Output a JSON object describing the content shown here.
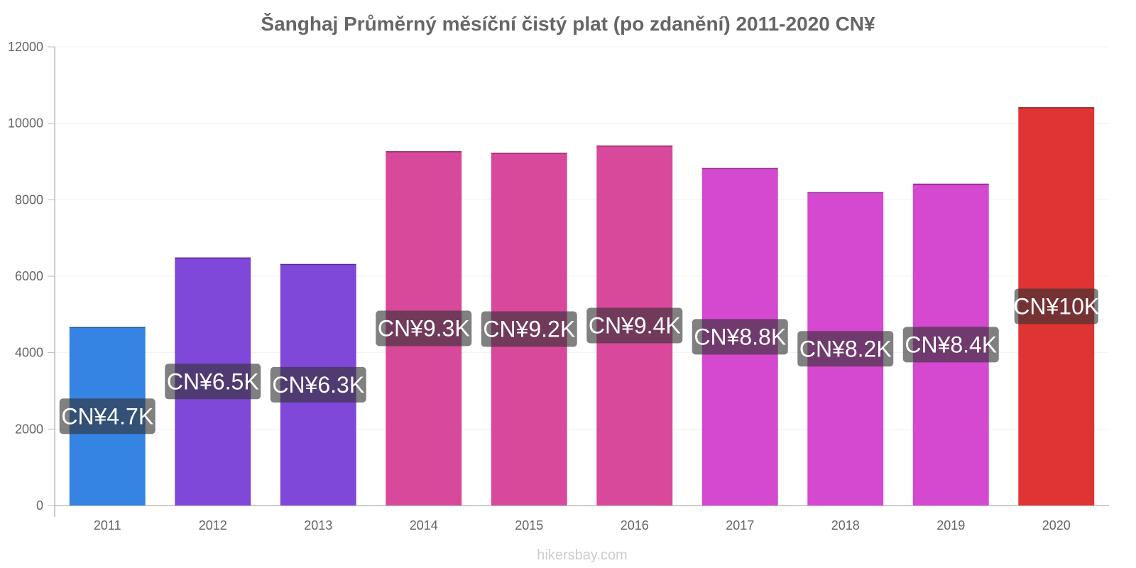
{
  "chart_data": {
    "type": "bar",
    "title": "Šanghaj Průměrný měsíční čistý plat (po zdanění) 2011-2020 CN¥",
    "categories": [
      "2011",
      "2012",
      "2013",
      "2014",
      "2015",
      "2016",
      "2017",
      "2018",
      "2019",
      "2020"
    ],
    "values": [
      4670,
      6490,
      6320,
      9270,
      9230,
      9420,
      8830,
      8200,
      8420,
      10420
    ],
    "data_labels": [
      "CN¥4.7K",
      "CN¥6.5K",
      "CN¥6.3K",
      "CN¥9.3K",
      "CN¥9.2K",
      "CN¥9.4K",
      "CN¥8.8K",
      "CN¥8.2K",
      "CN¥8.4K",
      "CN¥10K"
    ],
    "colors": [
      "#3584e4",
      "#8048d9",
      "#8048d9",
      "#d8489b",
      "#d8489b",
      "#d8489b",
      "#d548d0",
      "#d548d0",
      "#d548d0",
      "#e03434"
    ],
    "ylim": [
      0,
      12000
    ],
    "yticks": [
      0,
      2000,
      4000,
      6000,
      8000,
      10000,
      12000
    ],
    "xlabel": "",
    "ylabel": "",
    "grid": true,
    "legend": false
  },
  "footer": {
    "source": "hikersbay.com"
  }
}
